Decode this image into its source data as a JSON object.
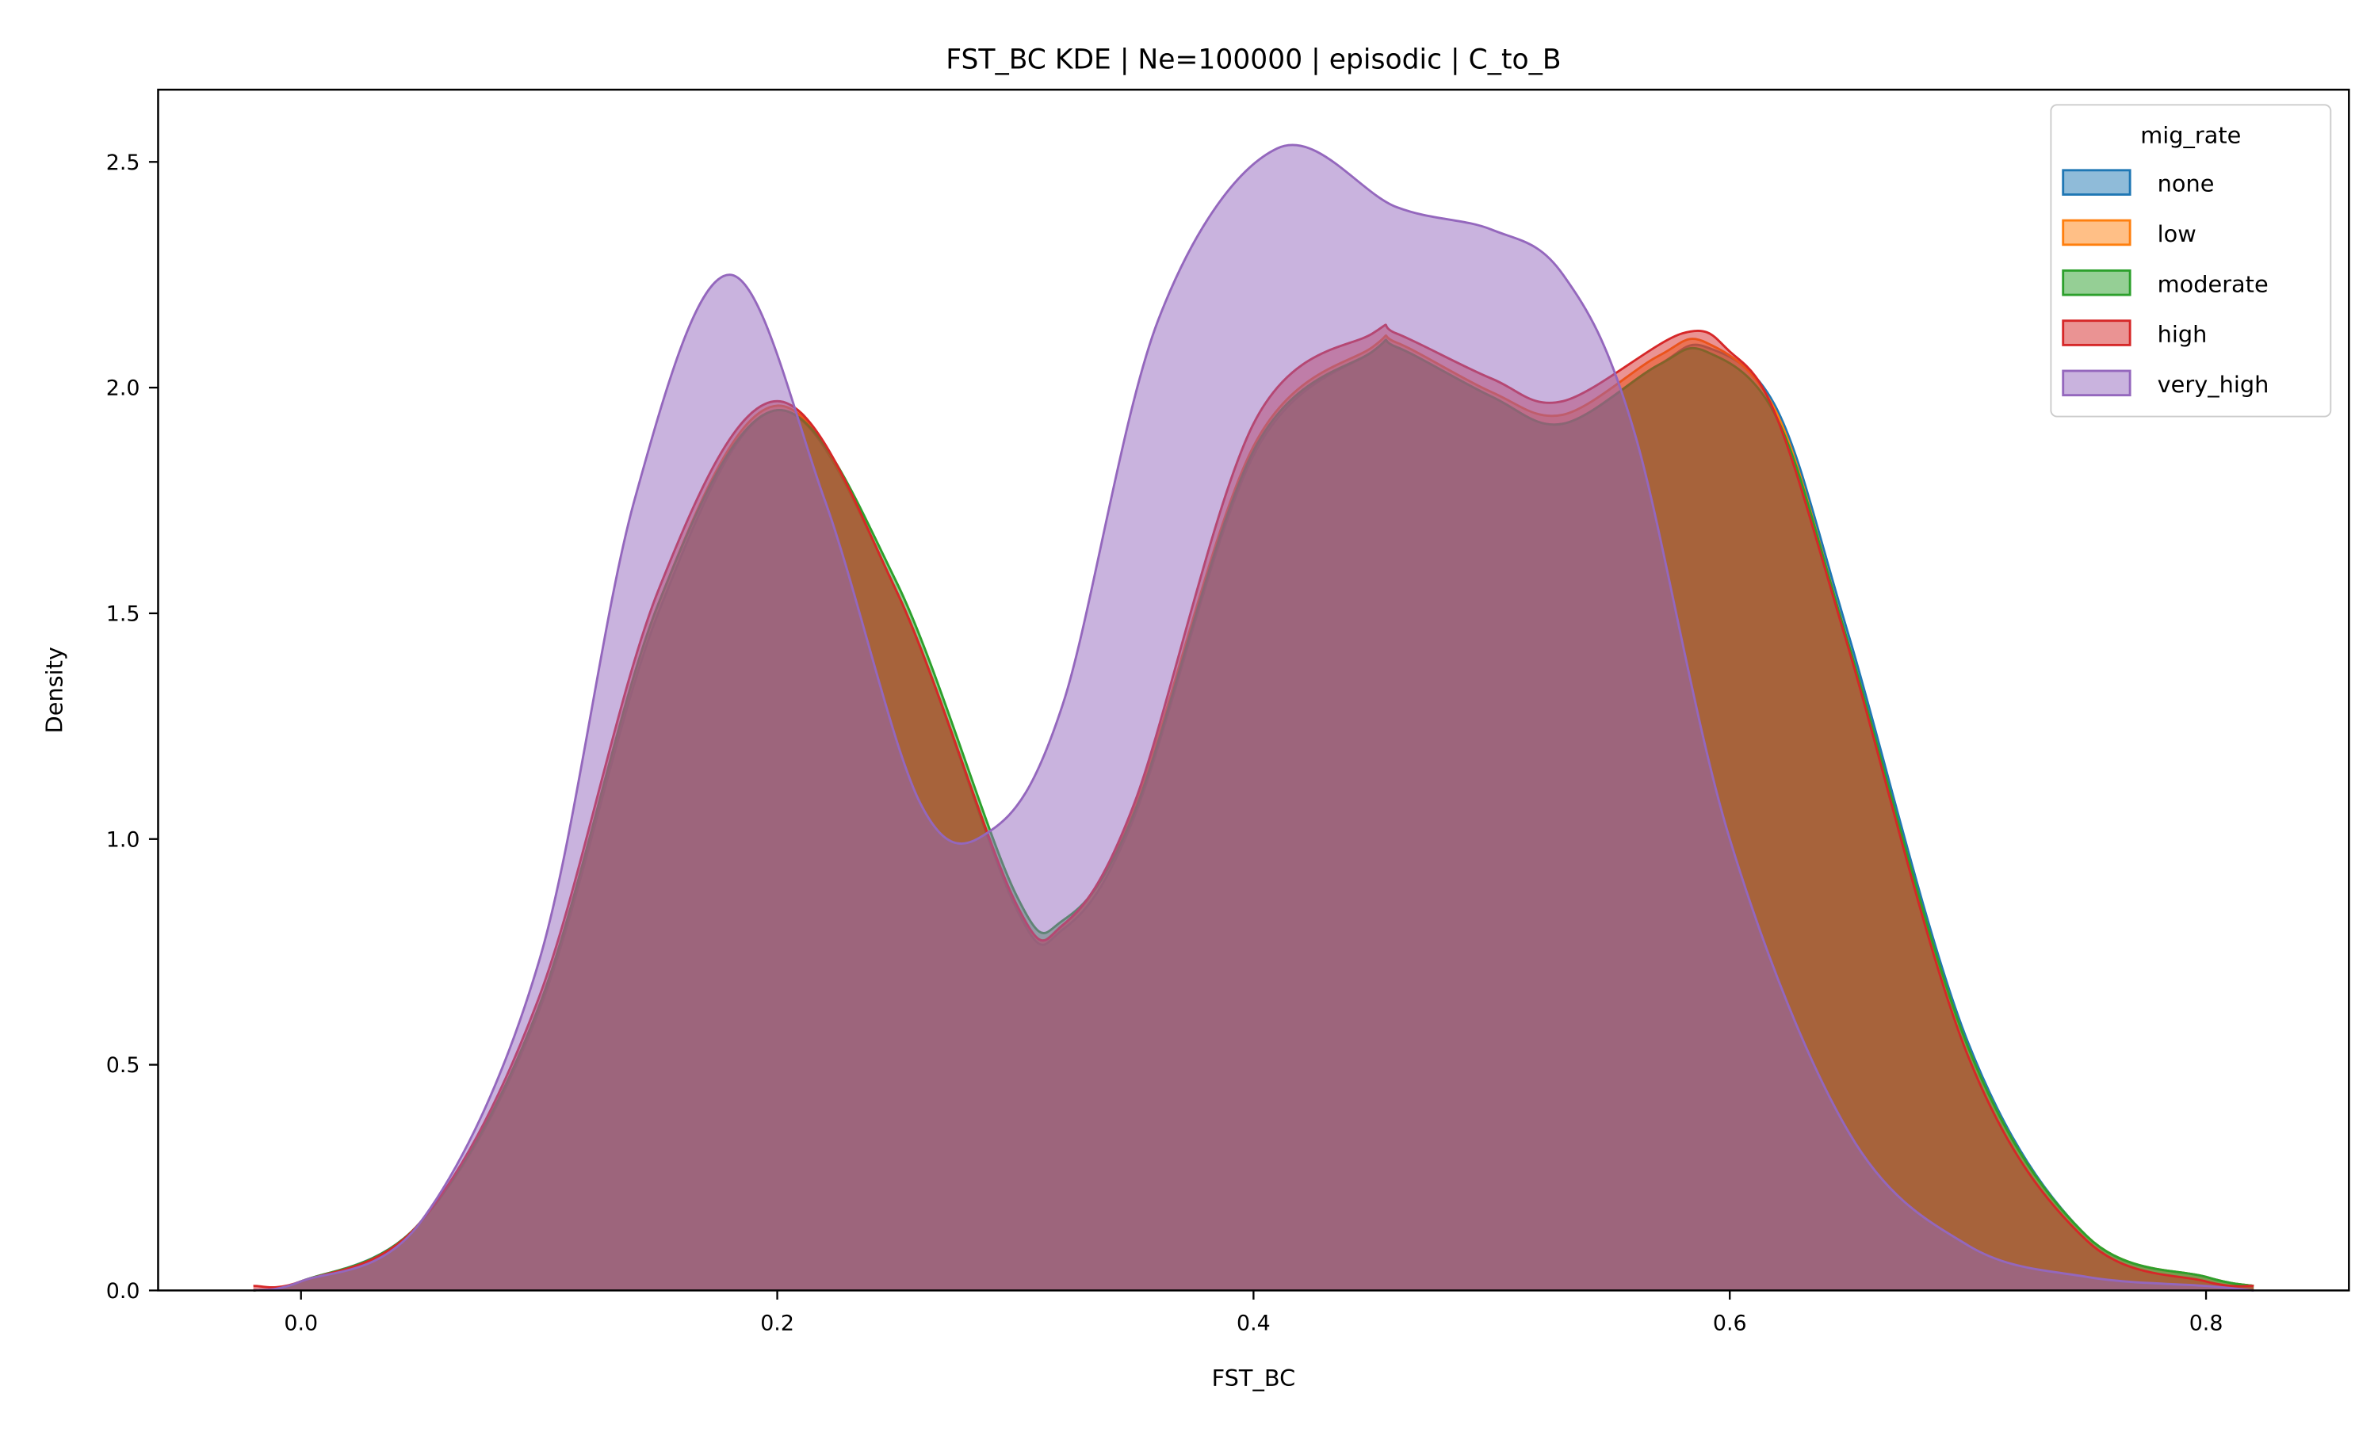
{
  "chart_data": {
    "type": "area",
    "title": "FST_BC KDE | Ne=100000 | episodic | C_to_B",
    "xlabel": "FST_BC",
    "ylabel": "Density",
    "xlim": [
      -0.06,
      0.86
    ],
    "ylim": [
      0,
      2.66
    ],
    "xticks": [
      "0.0",
      "0.2",
      "0.4",
      "0.6",
      "0.8"
    ],
    "yticks": [
      "0.0",
      "0.5",
      "1.0",
      "1.5",
      "2.0",
      "2.5"
    ],
    "grid": false,
    "legend": {
      "title": "mig_rate",
      "placement": "top-right"
    },
    "series": [
      {
        "name": "none",
        "color": "#1f77b4",
        "x": [
          -0.02,
          0.0,
          0.05,
          0.1,
          0.15,
          0.2,
          0.25,
          0.3,
          0.32,
          0.35,
          0.4,
          0.45,
          0.46,
          0.5,
          0.53,
          0.57,
          0.59,
          0.62,
          0.65,
          0.7,
          0.75,
          0.8,
          0.82
        ],
        "y": [
          0.0,
          0.02,
          0.15,
          0.62,
          1.5,
          1.95,
          1.55,
          0.85,
          0.8,
          1.05,
          1.85,
          2.08,
          2.09,
          1.98,
          1.92,
          2.05,
          2.09,
          1.95,
          1.45,
          0.55,
          0.12,
          0.03,
          0.01
        ]
      },
      {
        "name": "low",
        "color": "#ff7f0e",
        "x": [
          -0.02,
          0.0,
          0.05,
          0.1,
          0.15,
          0.2,
          0.25,
          0.3,
          0.32,
          0.35,
          0.4,
          0.45,
          0.46,
          0.5,
          0.53,
          0.57,
          0.59,
          0.62,
          0.65,
          0.7,
          0.75,
          0.8,
          0.82
        ],
        "y": [
          0.0,
          0.02,
          0.15,
          0.63,
          1.52,
          1.96,
          1.55,
          0.86,
          0.81,
          1.07,
          1.87,
          2.09,
          2.1,
          1.99,
          1.94,
          2.07,
          2.1,
          1.94,
          1.43,
          0.54,
          0.12,
          0.03,
          0.01
        ]
      },
      {
        "name": "moderate",
        "color": "#2ca02c",
        "x": [
          -0.02,
          0.0,
          0.05,
          0.1,
          0.15,
          0.2,
          0.25,
          0.3,
          0.32,
          0.35,
          0.4,
          0.45,
          0.46,
          0.5,
          0.53,
          0.57,
          0.59,
          0.62,
          0.65,
          0.7,
          0.75,
          0.8,
          0.82
        ],
        "y": [
          0.0,
          0.02,
          0.15,
          0.63,
          1.52,
          1.95,
          1.57,
          0.88,
          0.82,
          1.06,
          1.86,
          2.08,
          2.09,
          1.98,
          1.92,
          2.05,
          2.08,
          1.93,
          1.43,
          0.54,
          0.12,
          0.03,
          0.01
        ]
      },
      {
        "name": "high",
        "color": "#d62728",
        "x": [
          -0.02,
          0.0,
          0.05,
          0.1,
          0.15,
          0.2,
          0.25,
          0.3,
          0.32,
          0.35,
          0.4,
          0.45,
          0.46,
          0.5,
          0.53,
          0.58,
          0.6,
          0.62,
          0.65,
          0.7,
          0.75,
          0.8,
          0.82
        ],
        "y": [
          0.01,
          0.02,
          0.15,
          0.65,
          1.55,
          1.97,
          1.55,
          0.86,
          0.81,
          1.08,
          1.92,
          2.12,
          2.12,
          2.02,
          1.97,
          2.12,
          2.08,
          1.93,
          1.42,
          0.52,
          0.11,
          0.02,
          0.01
        ]
      },
      {
        "name": "very_high",
        "color": "#9467bd",
        "x": [
          -0.02,
          0.0,
          0.05,
          0.1,
          0.14,
          0.18,
          0.22,
          0.26,
          0.29,
          0.32,
          0.36,
          0.41,
          0.46,
          0.5,
          0.53,
          0.56,
          0.6,
          0.65,
          0.7,
          0.75,
          0.8,
          0.82
        ],
        "y": [
          0.0,
          0.02,
          0.15,
          0.73,
          1.75,
          2.25,
          1.75,
          1.08,
          1.02,
          1.3,
          2.15,
          2.53,
          2.4,
          2.35,
          2.25,
          1.9,
          1.0,
          0.35,
          0.1,
          0.03,
          0.01,
          0.0
        ]
      }
    ]
  }
}
